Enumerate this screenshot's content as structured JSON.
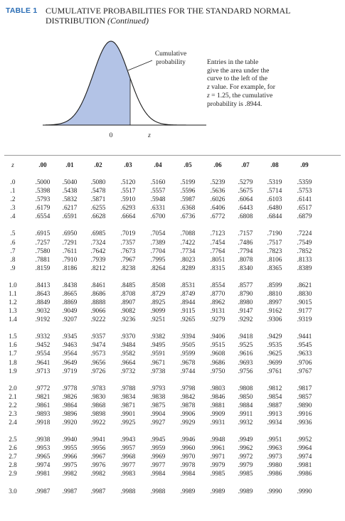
{
  "header": {
    "table_label": "TABLE 1",
    "title": "Cumulative Probabilities for the Standard Normal",
    "subtitle_main": "Distribution",
    "subtitle_paren": "(Continued)"
  },
  "figure": {
    "area_label_line1": "Cumulative",
    "area_label_line2": "probability",
    "mean_label": "0",
    "z_label": "z",
    "fill_color": "#b3c3e6",
    "curve_color": "#1a1a1a"
  },
  "annotation": {
    "line1": "Entries in the table",
    "line2": "give the area under the",
    "line3": "curve to the left of the",
    "line4_var": "z",
    "line4_rest": " value. For example, for",
    "line5_var": "z",
    "line5_rest": " = 1.25, the cumulative",
    "line6": "probability is .8944."
  },
  "table": {
    "z_header": "z",
    "columns": [
      ".00",
      ".01",
      ".02",
      ".03",
      ".04",
      ".05",
      ".06",
      ".07",
      ".08",
      ".09"
    ],
    "rows": [
      {
        "z": ".0",
        "values": [
          ".5000",
          ".5040",
          ".5080",
          ".5120",
          ".5160",
          ".5199",
          ".5239",
          ".5279",
          ".5319",
          ".5359"
        ]
      },
      {
        "z": ".1",
        "values": [
          ".5398",
          ".5438",
          ".5478",
          ".5517",
          ".5557",
          ".5596",
          ".5636",
          ".5675",
          ".5714",
          ".5753"
        ]
      },
      {
        "z": ".2",
        "values": [
          ".5793",
          ".5832",
          ".5871",
          ".5910",
          ".5948",
          ".5987",
          ".6026",
          ".6064",
          ".6103",
          ".6141"
        ]
      },
      {
        "z": ".3",
        "values": [
          ".6179",
          ".6217",
          ".6255",
          ".6293",
          ".6331",
          ".6368",
          ".6406",
          ".6443",
          ".6480",
          ".6517"
        ]
      },
      {
        "z": ".4",
        "values": [
          ".6554",
          ".6591",
          ".6628",
          ".6664",
          ".6700",
          ".6736",
          ".6772",
          ".6808",
          ".6844",
          ".6879"
        ]
      },
      {
        "z": ".5",
        "values": [
          ".6915",
          ".6950",
          ".6985",
          ".7019",
          ".7054",
          ".7088",
          ".7123",
          ".7157",
          ".7190",
          ".7224"
        ]
      },
      {
        "z": ".6",
        "values": [
          ".7257",
          ".7291",
          ".7324",
          ".7357",
          ".7389",
          ".7422",
          ".7454",
          ".7486",
          ".7517",
          ".7549"
        ]
      },
      {
        "z": ".7",
        "values": [
          ".7580",
          ".7611",
          ".7642",
          ".7673",
          ".7704",
          ".7734",
          ".7764",
          ".7794",
          ".7823",
          ".7852"
        ]
      },
      {
        "z": ".8",
        "values": [
          ".7881",
          ".7910",
          ".7939",
          ".7967",
          ".7995",
          ".8023",
          ".8051",
          ".8078",
          ".8106",
          ".8133"
        ]
      },
      {
        "z": ".9",
        "values": [
          ".8159",
          ".8186",
          ".8212",
          ".8238",
          ".8264",
          ".8289",
          ".8315",
          ".8340",
          ".8365",
          ".8389"
        ]
      },
      {
        "z": "1.0",
        "values": [
          ".8413",
          ".8438",
          ".8461",
          ".8485",
          ".8508",
          ".8531",
          ".8554",
          ".8577",
          ".8599",
          ".8621"
        ]
      },
      {
        "z": "1.1",
        "values": [
          ".8643",
          ".8665",
          ".8686",
          ".8708",
          ".8729",
          ".8749",
          ".8770",
          ".8790",
          ".8810",
          ".8830"
        ]
      },
      {
        "z": "1.2",
        "values": [
          ".8849",
          ".8869",
          ".8888",
          ".8907",
          ".8925",
          ".8944",
          ".8962",
          ".8980",
          ".8997",
          ".9015"
        ]
      },
      {
        "z": "1.3",
        "values": [
          ".9032",
          ".9049",
          ".9066",
          ".9082",
          ".9099",
          ".9115",
          ".9131",
          ".9147",
          ".9162",
          ".9177"
        ]
      },
      {
        "z": "1.4",
        "values": [
          ".9192",
          ".9207",
          ".9222",
          ".9236",
          ".9251",
          ".9265",
          ".9279",
          ".9292",
          ".9306",
          ".9319"
        ]
      },
      {
        "z": "1.5",
        "values": [
          ".9332",
          ".9345",
          ".9357",
          ".9370",
          ".9382",
          ".9394",
          ".9406",
          ".9418",
          ".9429",
          ".9441"
        ]
      },
      {
        "z": "1.6",
        "values": [
          ".9452",
          ".9463",
          ".9474",
          ".9484",
          ".9495",
          ".9505",
          ".9515",
          ".9525",
          ".9535",
          ".9545"
        ]
      },
      {
        "z": "1.7",
        "values": [
          ".9554",
          ".9564",
          ".9573",
          ".9582",
          ".9591",
          ".9599",
          ".9608",
          ".9616",
          ".9625",
          ".9633"
        ]
      },
      {
        "z": "1.8",
        "values": [
          ".9641",
          ".9649",
          ".9656",
          ".9664",
          ".9671",
          ".9678",
          ".9686",
          ".9693",
          ".9699",
          ".9706"
        ]
      },
      {
        "z": "1.9",
        "values": [
          ".9713",
          ".9719",
          ".9726",
          ".9732",
          ".9738",
          ".9744",
          ".9750",
          ".9756",
          ".9761",
          ".9767"
        ]
      },
      {
        "z": "2.0",
        "values": [
          ".9772",
          ".9778",
          ".9783",
          ".9788",
          ".9793",
          ".9798",
          ".9803",
          ".9808",
          ".9812",
          ".9817"
        ]
      },
      {
        "z": "2.1",
        "values": [
          ".9821",
          ".9826",
          ".9830",
          ".9834",
          ".9838",
          ".9842",
          ".9846",
          ".9850",
          ".9854",
          ".9857"
        ]
      },
      {
        "z": "2.2",
        "values": [
          ".9861",
          ".9864",
          ".9868",
          ".9871",
          ".9875",
          ".9878",
          ".9881",
          ".9884",
          ".9887",
          ".9890"
        ]
      },
      {
        "z": "2.3",
        "values": [
          ".9893",
          ".9896",
          ".9898",
          ".9901",
          ".9904",
          ".9906",
          ".9909",
          ".9911",
          ".9913",
          ".9916"
        ]
      },
      {
        "z": "2.4",
        "values": [
          ".9918",
          ".9920",
          ".9922",
          ".9925",
          ".9927",
          ".9929",
          ".9931",
          ".9932",
          ".9934",
          ".9936"
        ]
      },
      {
        "z": "2.5",
        "values": [
          ".9938",
          ".9940",
          ".9941",
          ".9943",
          ".9945",
          ".9946",
          ".9948",
          ".9949",
          ".9951",
          ".9952"
        ]
      },
      {
        "z": "2.6",
        "values": [
          ".9953",
          ".9955",
          ".9956",
          ".9957",
          ".9959",
          ".9960",
          ".9961",
          ".9962",
          ".9963",
          ".9964"
        ]
      },
      {
        "z": "2.7",
        "values": [
          ".9965",
          ".9966",
          ".9967",
          ".9968",
          ".9969",
          ".9970",
          ".9971",
          ".9972",
          ".9973",
          ".9974"
        ]
      },
      {
        "z": "2.8",
        "values": [
          ".9974",
          ".9975",
          ".9976",
          ".9977",
          ".9977",
          ".9978",
          ".9979",
          ".9979",
          ".9980",
          ".9981"
        ]
      },
      {
        "z": "2.9",
        "values": [
          ".9981",
          ".9982",
          ".9982",
          ".9983",
          ".9984",
          ".9984",
          ".9985",
          ".9985",
          ".9986",
          ".9986"
        ]
      },
      {
        "z": "3.0",
        "values": [
          ".9987",
          ".9987",
          ".9987",
          ".9988",
          ".9988",
          ".9989",
          ".9989",
          ".9989",
          ".9990",
          ".9990"
        ]
      }
    ]
  }
}
